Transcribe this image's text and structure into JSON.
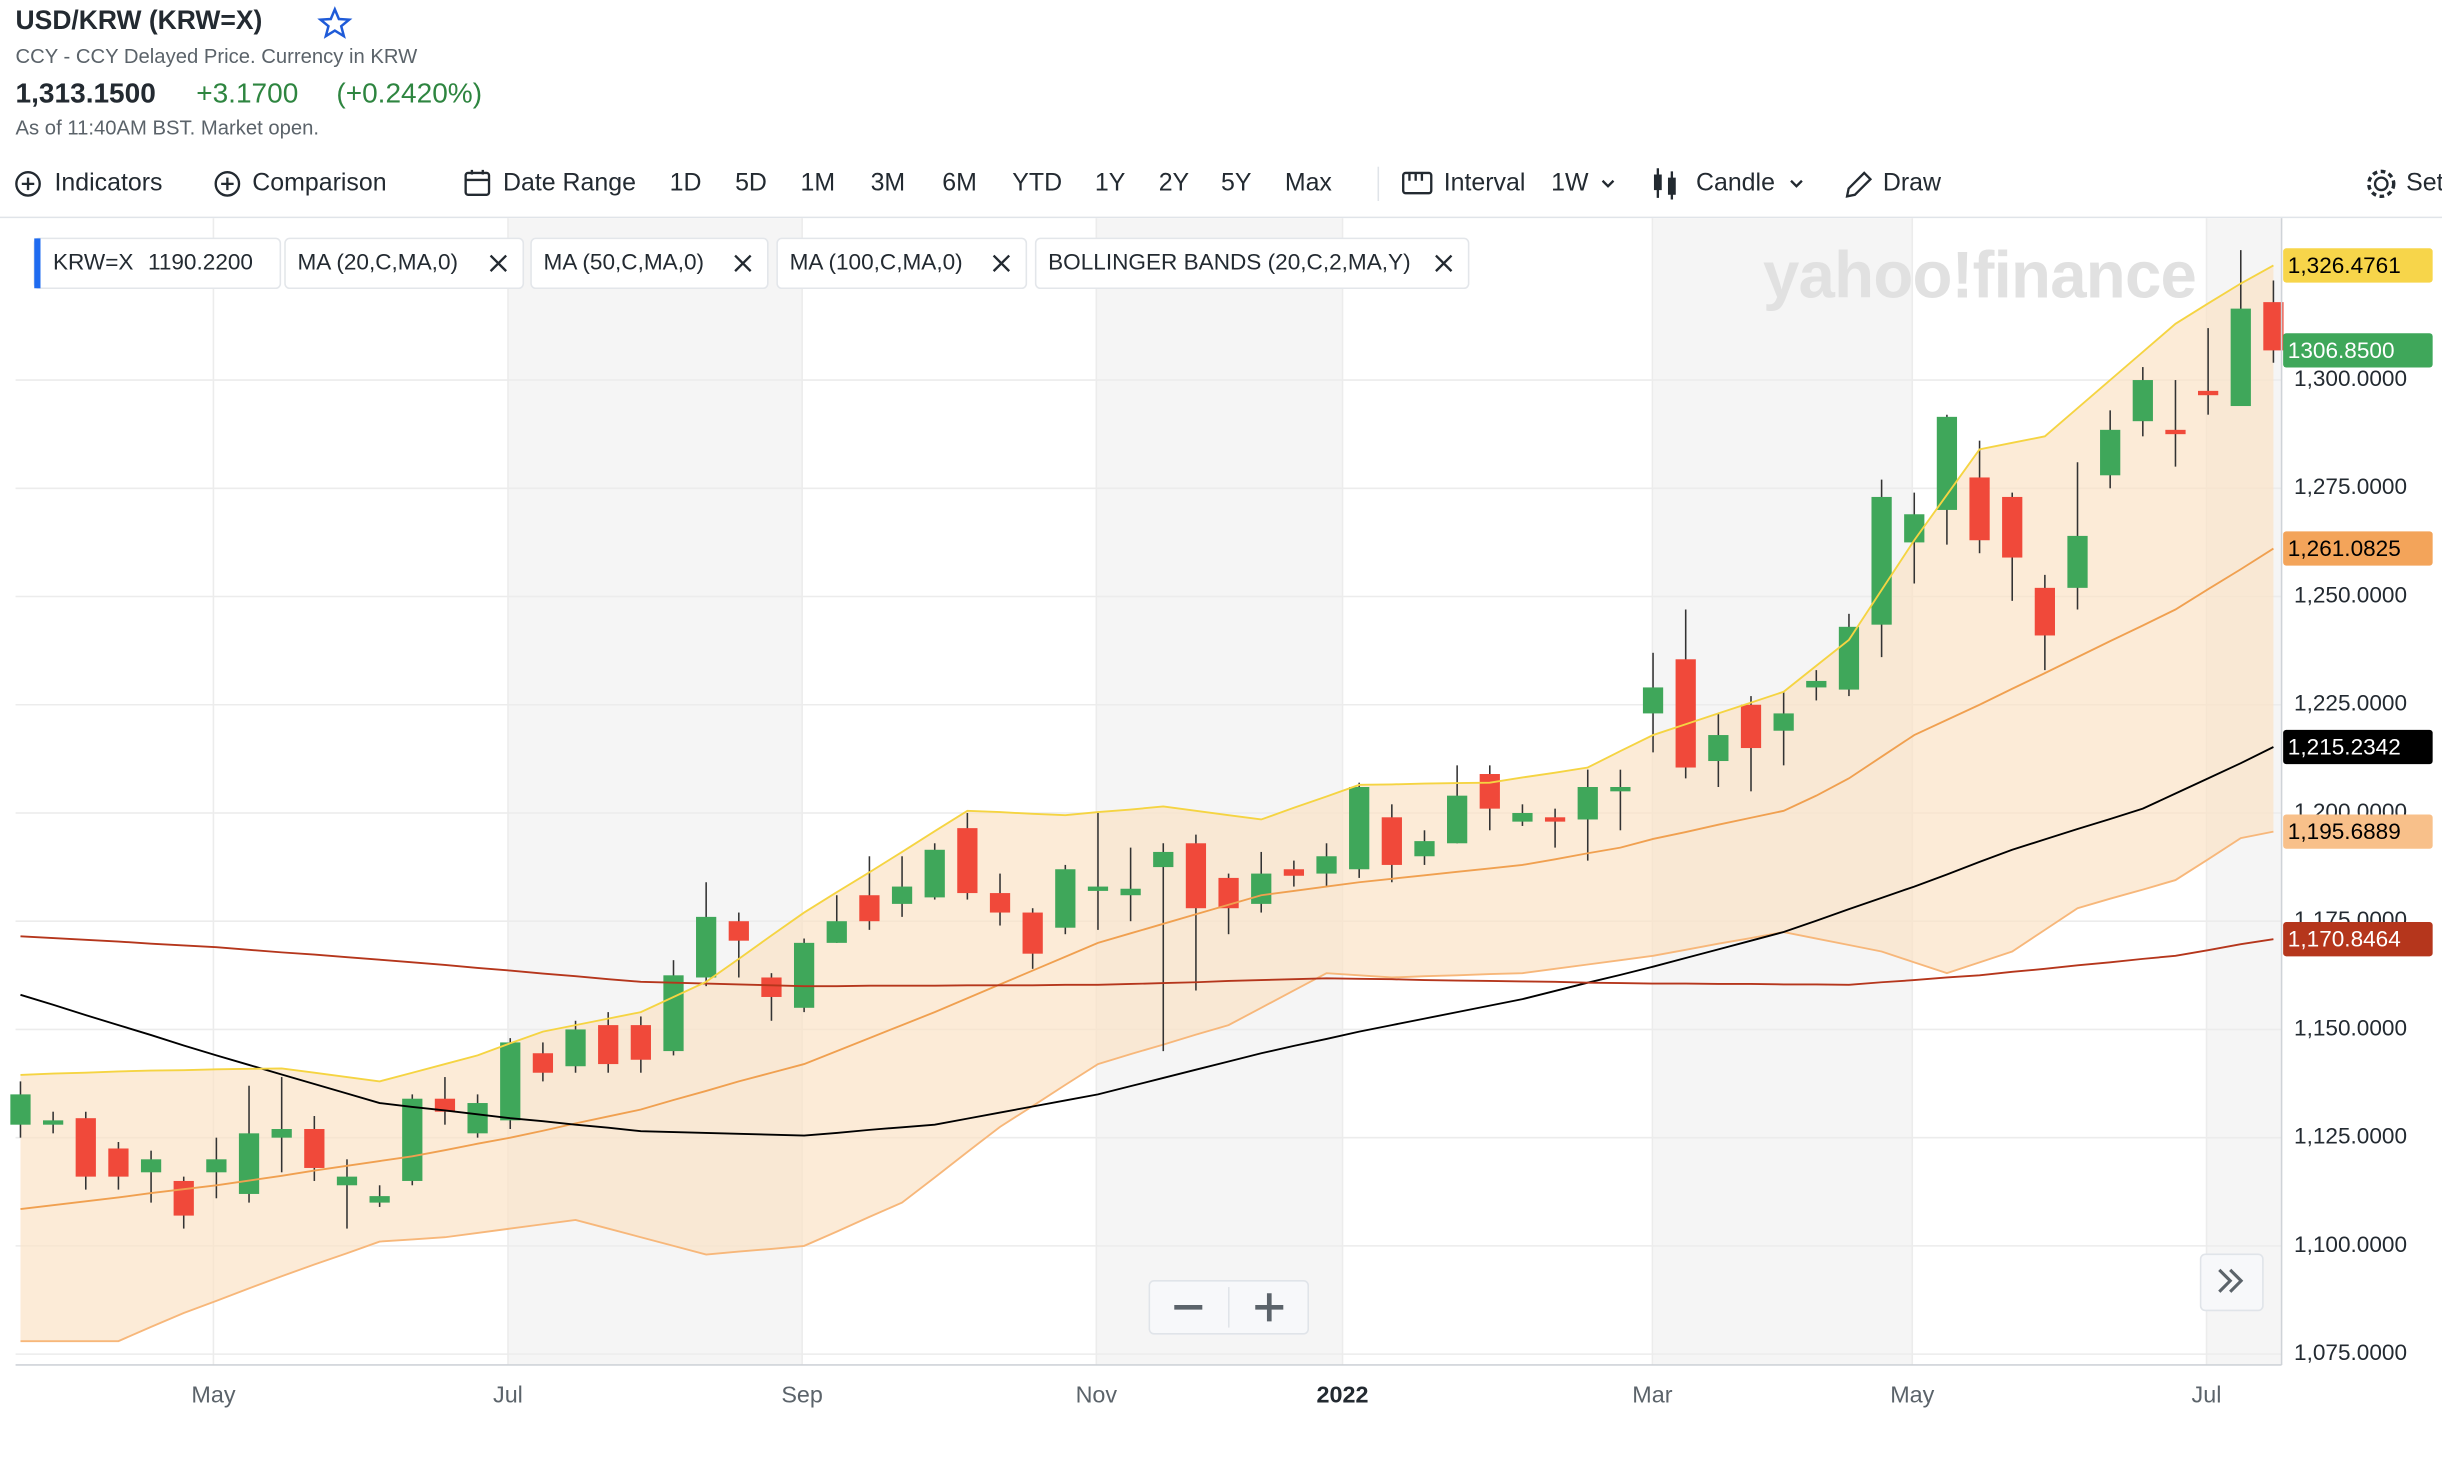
{
  "header": {
    "title": "USD/KRW (KRW=X)",
    "subtitle": "CCY - CCY Delayed Price. Currency in KRW",
    "price": "1,313.1500",
    "change": "+3.1700",
    "change_pct": "(+0.2420%)",
    "status": "As of 11:40AM BST. Market open."
  },
  "toolbar": {
    "indicators": "Indicators",
    "comparison": "Comparison",
    "date_range": "Date Range",
    "ranges": [
      "1D",
      "5D",
      "1M",
      "3M",
      "6M",
      "YTD",
      "1Y",
      "2Y",
      "5Y",
      "Max"
    ],
    "interval_label": "Interval",
    "interval": "1W",
    "chart_style": "Candle",
    "draw": "Draw",
    "settings": "Set"
  },
  "chart_data": {
    "type": "candlestick",
    "watermark": "yahoo!finance",
    "legend": {
      "symbol": "KRW=X",
      "readout": "1190.2200"
    },
    "up_color": "#3fa75a",
    "down_color": "#f0493a",
    "categories": [
      null,
      null,
      null,
      null,
      null,
      null,
      null,
      null,
      null,
      null,
      null,
      null,
      null,
      null,
      null,
      null,
      null,
      null,
      null,
      null,
      null,
      null,
      null,
      null,
      null,
      null,
      null,
      null,
      null,
      null,
      null,
      null,
      null,
      null,
      null,
      null,
      null,
      null,
      null,
      null,
      null,
      null,
      null,
      null,
      null,
      null,
      null,
      null,
      null,
      null,
      null,
      null,
      null,
      null,
      null,
      null,
      null,
      null,
      null,
      null,
      null,
      null,
      null,
      null,
      null,
      null,
      null,
      null,
      null,
      null
    ],
    "open": [
      1128,
      1128,
      1129.5,
      1122.5,
      1117,
      1115,
      1117,
      1112,
      1125,
      1127,
      1114,
      1110,
      1115,
      1134,
      1126,
      1129,
      1144.5,
      1141.5,
      1151,
      1151,
      1145,
      1162,
      1175,
      1162,
      1155,
      1170,
      1181,
      1179,
      1180.5,
      1196.5,
      1181.5,
      1177,
      1173.5,
      1182,
      1181,
      1187.5,
      1193,
      1185,
      1179,
      1187,
      1186,
      1187,
      1199,
      1190,
      1193,
      1209,
      1198,
      1199,
      1198.5,
      1205,
      1223,
      1235.5,
      1212,
      1225,
      1219,
      1229,
      1228.5,
      1243.5,
      1262.5,
      1270,
      1277.5,
      1273,
      1252,
      1252,
      1278,
      1290.5,
      1288.5,
      1297.5,
      1294,
      1318
    ],
    "high": [
      1138,
      1131,
      1131,
      1124,
      1122,
      1116,
      1125,
      1137,
      1139,
      1130,
      1120,
      1114,
      1135,
      1139,
      1135,
      1148,
      1147,
      1152,
      1154,
      1153,
      1166,
      1184,
      1177,
      1163,
      1171,
      1181,
      1190,
      1190,
      1193,
      1200,
      1186,
      1178,
      1188,
      1200,
      1192,
      1193,
      1195,
      1186,
      1191,
      1189,
      1193,
      1207,
      1202,
      1196,
      1211,
      1211,
      1202,
      1201,
      1210,
      1210,
      1237,
      1247,
      1223,
      1227,
      1228,
      1233,
      1246,
      1277,
      1274,
      1292,
      1286,
      1274,
      1255,
      1281,
      1293,
      1303,
      1300,
      1312,
      1330,
      1323
    ],
    "low": [
      1125,
      1126,
      1113,
      1113,
      1110,
      1104,
      1111,
      1110,
      1117,
      1115,
      1104,
      1109,
      1114,
      1128,
      1125,
      1127,
      1138,
      1140,
      1140,
      1140,
      1144,
      1160,
      1162,
      1152,
      1154,
      1170,
      1173,
      1176,
      1180,
      1180,
      1174,
      1164,
      1172,
      1173,
      1175,
      1145,
      1159,
      1172,
      1177,
      1183,
      1183,
      1185,
      1184,
      1188,
      1193,
      1196,
      1197,
      1192,
      1189,
      1196,
      1214,
      1208,
      1206,
      1205,
      1211,
      1226,
      1227,
      1236,
      1253,
      1262,
      1260,
      1249,
      1233,
      1247,
      1275,
      1287,
      1280,
      1292,
      1294,
      1304
    ],
    "close": [
      1135,
      1129,
      1116,
      1116,
      1120,
      1107,
      1120,
      1126,
      1127,
      1118,
      1116,
      1111.5,
      1134,
      1131,
      1133,
      1147,
      1140,
      1150,
      1142,
      1143,
      1162.5,
      1176,
      1170.5,
      1157.5,
      1170,
      1175,
      1175,
      1183,
      1191.5,
      1181.5,
      1177,
      1167.5,
      1187,
      1183,
      1182.5,
      1191,
      1178,
      1178,
      1186,
      1185.5,
      1190,
      1206,
      1188,
      1193.5,
      1204,
      1201,
      1200,
      1198,
      1206,
      1206,
      1229,
      1210.5,
      1218,
      1215,
      1223,
      1230.5,
      1243,
      1273,
      1269,
      1291.5,
      1263,
      1259,
      1241,
      1264,
      1288.5,
      1300,
      1287.5,
      1296.5,
      1316.5,
      1306.85
    ],
    "series": [
      {
        "name": "MA (20,C,MA,0)",
        "color": "#f0a050",
        "values": [
          1108.5,
          1109.4,
          1110.3,
          1111.2,
          1112.2,
          1113.1,
          1114,
          1115.1,
          1116.2,
          1117.4,
          1118.5,
          1119.6,
          1120.7,
          1122.1,
          1123.6,
          1125,
          1126.6,
          1128.3,
          1129.9,
          1131.5,
          1133.7,
          1135.8,
          1138,
          1140,
          1142,
          1145,
          1148,
          1151,
          1154,
          1157.2,
          1160.4,
          1163.6,
          1166.8,
          1170,
          1172.2,
          1174.4,
          1176.6,
          1178.8,
          1181,
          1182,
          1183,
          1184,
          1184.8,
          1185.6,
          1186.4,
          1187.2,
          1188,
          1189.3,
          1190.7,
          1192,
          1194,
          1195.6,
          1197.3,
          1198.9,
          1200.5,
          1204,
          1208,
          1213,
          1218,
          1221.5,
          1225,
          1228.7,
          1232.3,
          1236,
          1239.7,
          1243.3,
          1247,
          1251.7,
          1256.3,
          1261.0825
        ]
      },
      {
        "name": "MA (50,C,MA,0)",
        "color": "#000000",
        "values": [
          1158,
          1155.7,
          1153.3,
          1151,
          1148.7,
          1146.3,
          1144,
          1141.8,
          1139.6,
          1137.4,
          1135.2,
          1133,
          1132.1,
          1131.3,
          1130.4,
          1129.5,
          1128.8,
          1128,
          1127.3,
          1126.5,
          1126.3,
          1126.1,
          1125.9,
          1125.7,
          1125.5,
          1126.1,
          1126.8,
          1127.4,
          1128,
          1129.4,
          1130.8,
          1132.2,
          1133.6,
          1135,
          1136.9,
          1138.8,
          1140.7,
          1142.6,
          1144.5,
          1146.2,
          1147.8,
          1149.5,
          1151,
          1152.5,
          1154,
          1155.5,
          1157,
          1158.9,
          1160.8,
          1162.6,
          1164.5,
          1166.5,
          1168.5,
          1170.5,
          1172.5,
          1175.1,
          1177.8,
          1180.4,
          1183,
          1185.8,
          1188.7,
          1191.5,
          1193.9,
          1196.3,
          1198.6,
          1201,
          1204.5,
          1208,
          1211.5,
          1215.2342
        ]
      },
      {
        "name": "MA (100,C,MA,0)",
        "color": "#b5361c",
        "values": [
          1171.5,
          1171.1,
          1170.7,
          1170.3,
          1169.8,
          1169.4,
          1169,
          1168.4,
          1167.8,
          1167.3,
          1166.7,
          1166.1,
          1165.5,
          1164.9,
          1164.2,
          1163.6,
          1162.9,
          1162.3,
          1161.6,
          1161,
          1160.8,
          1160.6,
          1160.4,
          1160.2,
          1160,
          1160,
          1160.1,
          1160.1,
          1160.1,
          1160.2,
          1160.2,
          1160.2,
          1160.3,
          1160.3,
          1160.5,
          1160.7,
          1160.9,
          1161.2,
          1161.4,
          1161.6,
          1161.8,
          1161.7,
          1161.6,
          1161.4,
          1161.3,
          1161.2,
          1161.1,
          1161,
          1160.8,
          1160.7,
          1160.6,
          1160.6,
          1160.5,
          1160.5,
          1160.4,
          1160.4,
          1160.3,
          1160.9,
          1161.4,
          1162,
          1162.5,
          1163.3,
          1164,
          1164.8,
          1165.5,
          1166.3,
          1167,
          1168.3,
          1169.7,
          1170.8464
        ]
      },
      {
        "name": "BOLLINGER BANDS (20,C,2,MA,Y)",
        "color": "#f5d442",
        "lower_color": "#f7b77a",
        "fill": "#fbe3c6",
        "values": [
          1139.5,
          1139.8,
          1140,
          1140.3,
          1140.5,
          1140.6,
          1140.8,
          1140.9,
          1141,
          1140,
          1139,
          1138,
          1140,
          1142,
          1144,
          1146.8,
          1149.5,
          1151,
          1152.5,
          1154,
          1157.5,
          1161,
          1166.3,
          1171.7,
          1177,
          1181.7,
          1186.3,
          1191,
          1195.8,
          1200.5,
          1200.2,
          1199.8,
          1199.5,
          1200.2,
          1200.8,
          1201.5,
          1200.5,
          1199.5,
          1198.5,
          1201.2,
          1203.8,
          1206.5,
          1206.6,
          1206.8,
          1206.9,
          1207,
          1208.2,
          1209.3,
          1210.5,
          1214.3,
          1218,
          1220.5,
          1223,
          1225.5,
          1228,
          1234,
          1240,
          1251.5,
          1263,
          1273.5,
          1284,
          1285.5,
          1287,
          1293.5,
          1300,
          1306.5,
          1313,
          1317.7,
          1322.3,
          1326.4761
        ],
        "lower": [
          1078,
          1078,
          1078,
          1078,
          1081.3,
          1084.5,
          1087.3,
          1090.2,
          1093,
          1095.7,
          1098.3,
          1101,
          1101.5,
          1102,
          1103,
          1104,
          1105,
          1106,
          1104,
          1102,
          1100,
          1098,
          1098.7,
          1099.3,
          1100,
          1103.3,
          1106.7,
          1110,
          1115.8,
          1121.7,
          1127.5,
          1132.3,
          1137.2,
          1142,
          1144.3,
          1146.5,
          1148.8,
          1151,
          1155,
          1159,
          1163,
          1162.5,
          1162,
          1162.3,
          1162.5,
          1162.8,
          1163,
          1164,
          1165,
          1166,
          1167,
          1168.4,
          1169.8,
          1171.1,
          1172.5,
          1171,
          1169.5,
          1168,
          1165.5,
          1163,
          1165.5,
          1168,
          1173,
          1178,
          1180.2,
          1182.3,
          1184.5,
          1189.3,
          1194.2,
          1195.6889
        ]
      }
    ],
    "price_tags": [
      {
        "value": 1326.4761,
        "label": "1,326.4761",
        "color": "#f7d54a",
        "text_color": "#000000"
      },
      {
        "value": 1306.85,
        "label": "1306.8500",
        "color": "#3fa75a",
        "text_color": "#ffffff"
      },
      {
        "value": 1261.0825,
        "label": "1,261.0825",
        "color": "#f3a45a",
        "text_color": "#000000"
      },
      {
        "value": 1215.2342,
        "label": "1,215.2342",
        "color": "#000000",
        "text_color": "#ffffff"
      },
      {
        "value": 1195.6889,
        "label": "1,195.6889",
        "color": "#f8c08a",
        "text_color": "#000000"
      },
      {
        "value": 1170.8464,
        "label": "1,170.8464",
        "color": "#b5361c",
        "text_color": "#ffffff"
      }
    ],
    "xlim": [
      -0.15,
      69.25
    ],
    "xticks": [
      {
        "value": 5.91,
        "label": "May"
      },
      {
        "value": 14.93,
        "label": "Jul"
      },
      {
        "value": 23.94,
        "label": "Sep"
      },
      {
        "value": 32.95,
        "label": "Nov"
      },
      {
        "value": 40.49,
        "label": "2022"
      },
      {
        "value": 49.98,
        "label": "Mar"
      },
      {
        "value": 57.94,
        "label": "May"
      },
      {
        "value": 66.95,
        "label": "Jul"
      }
    ],
    "bold_xtick": "2022",
    "ylim": [
      1072.5,
      1337.4
    ],
    "yticks": [
      {
        "value": 1075,
        "label": "1,075.0000"
      },
      {
        "value": 1100,
        "label": "1,100.0000"
      },
      {
        "value": 1125,
        "label": "1,125.0000"
      },
      {
        "value": 1150,
        "label": "1,150.0000"
      },
      {
        "value": 1175,
        "label": "1,175.0000"
      },
      {
        "value": 1200,
        "label": "1,200.0000"
      },
      {
        "value": 1225,
        "label": "1,225.0000"
      },
      {
        "value": 1250,
        "label": "1,250.0000"
      },
      {
        "value": 1275,
        "label": "1,275.0000"
      },
      {
        "value": 1300,
        "label": "1,300.0000"
      }
    ],
    "grid": true,
    "alternate_shading": true
  }
}
